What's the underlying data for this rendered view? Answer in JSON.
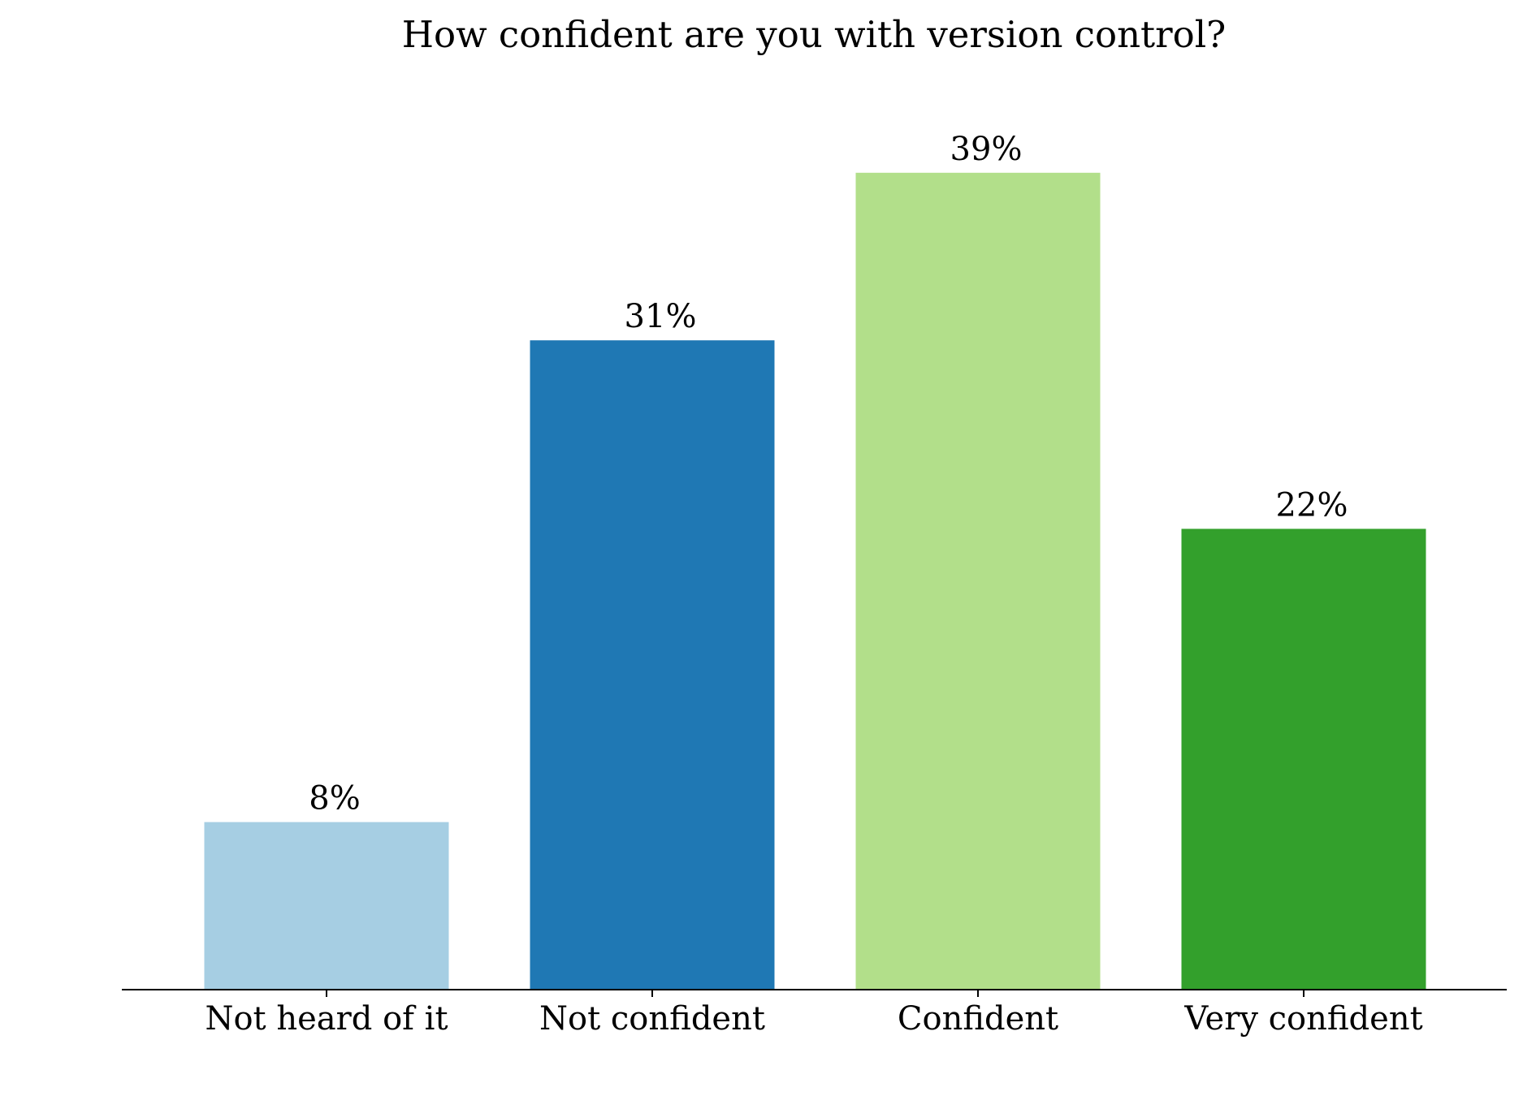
{
  "chart_data": {
    "type": "bar",
    "title": "How confident are you with version control?",
    "xlabel": "",
    "ylabel": "",
    "categories": [
      "Not heard of it",
      "Not confident",
      "Confident",
      "Very confident"
    ],
    "values": [
      8,
      31,
      39,
      22
    ],
    "value_labels": [
      "8%",
      "31%",
      "39%",
      "22%"
    ],
    "colors": [
      "#a6cee3",
      "#1f78b4",
      "#b2df8a",
      "#33a02c"
    ],
    "ylim": [
      0,
      40
    ],
    "grid": false,
    "legend": "none",
    "show_y_axis": false
  }
}
